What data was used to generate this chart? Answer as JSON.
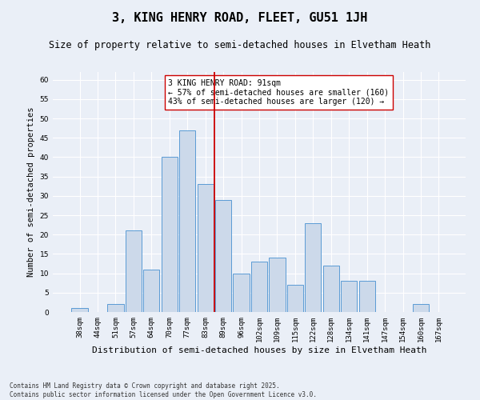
{
  "title": "3, KING HENRY ROAD, FLEET, GU51 1JH",
  "subtitle": "Size of property relative to semi-detached houses in Elvetham Heath",
  "xlabel": "Distribution of semi-detached houses by size in Elvetham Heath",
  "ylabel": "Number of semi-detached properties",
  "bar_labels": [
    "38sqm",
    "44sqm",
    "51sqm",
    "57sqm",
    "64sqm",
    "70sqm",
    "77sqm",
    "83sqm",
    "89sqm",
    "96sqm",
    "102sqm",
    "109sqm",
    "115sqm",
    "122sqm",
    "128sqm",
    "134sqm",
    "141sqm",
    "147sqm",
    "154sqm",
    "160sqm",
    "167sqm"
  ],
  "bar_values": [
    1,
    0,
    2,
    21,
    11,
    40,
    47,
    33,
    29,
    10,
    13,
    14,
    7,
    23,
    12,
    8,
    8,
    0,
    0,
    2,
    0
  ],
  "bar_color": "#ccd9ea",
  "bar_edge_color": "#5b9bd5",
  "background_color": "#eaeff7",
  "grid_color": "#ffffff",
  "vline_color": "#cc0000",
  "vline_x": 7.5,
  "annotation_text": "3 KING HENRY ROAD: 91sqm\n← 57% of semi-detached houses are smaller (160)\n43% of semi-detached houses are larger (120) →",
  "annotation_box_color": "#ffffff",
  "annotation_box_edge": "#cc0000",
  "ylim": [
    0,
    62
  ],
  "yticks": [
    0,
    5,
    10,
    15,
    20,
    25,
    30,
    35,
    40,
    45,
    50,
    55,
    60
  ],
  "footer_text": "Contains HM Land Registry data © Crown copyright and database right 2025.\nContains public sector information licensed under the Open Government Licence v3.0.",
  "title_fontsize": 11,
  "subtitle_fontsize": 8.5,
  "xlabel_fontsize": 8,
  "ylabel_fontsize": 7.5,
  "tick_fontsize": 6.5,
  "annotation_fontsize": 7,
  "footer_fontsize": 5.5
}
